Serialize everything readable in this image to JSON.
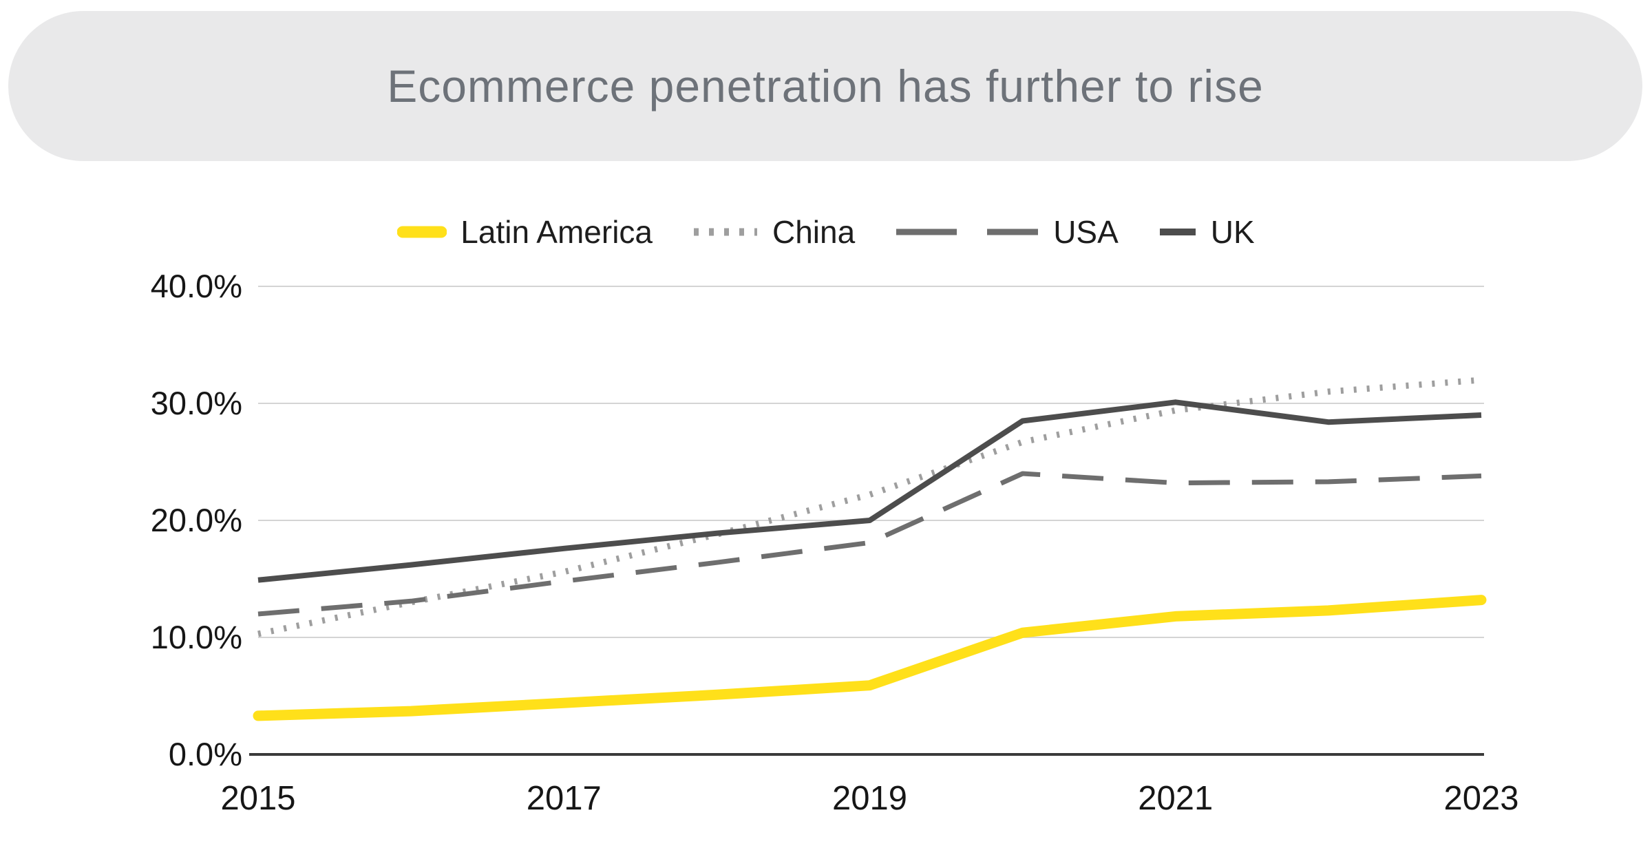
{
  "title": "Ecommerce penetration has further to rise",
  "chart_data": {
    "type": "line",
    "title": "Ecommerce penetration has further to rise",
    "xlabel": "",
    "ylabel": "",
    "x": [
      2015,
      2016,
      2017,
      2018,
      2019,
      2020,
      2021,
      2022,
      2023
    ],
    "x_ticks": [
      2015,
      2017,
      2019,
      2021,
      2023
    ],
    "x_tick_labels": [
      "2015",
      "2017",
      "2019",
      "2021",
      "2023"
    ],
    "ylim": [
      0,
      40
    ],
    "y_ticks": [
      0,
      10,
      20,
      30,
      40
    ],
    "y_tick_labels": [
      "0.0%",
      "10.0%",
      "20.0%",
      "30.0%",
      "40.0%"
    ],
    "grid": true,
    "legend_position": "top",
    "background_color": "#ffffff",
    "gridline_color": "#d4d4d4",
    "axis_color": "#3a3a3a",
    "series": [
      {
        "name": "Latin America",
        "color": "#FFE01A",
        "style": "solid-thick",
        "values": [
          3.3,
          3.7,
          4.4,
          5.1,
          5.9,
          10.4,
          11.8,
          12.3,
          13.2
        ]
      },
      {
        "name": "China",
        "color": "#9E9E9E",
        "style": "dotted",
        "values": [
          10.3,
          13.0,
          15.6,
          18.8,
          22.2,
          26.7,
          29.4,
          31.0,
          32.0
        ]
      },
      {
        "name": "USA",
        "color": "#6E6E6E",
        "style": "dashed",
        "values": [
          12.0,
          13.1,
          14.8,
          16.4,
          18.1,
          24.0,
          23.2,
          23.3,
          23.8
        ]
      },
      {
        "name": "UK",
        "color": "#4D4D4D",
        "style": "solid",
        "values": [
          14.9,
          16.2,
          17.6,
          18.9,
          20.0,
          28.5,
          30.1,
          28.4,
          29.0
        ]
      }
    ]
  }
}
